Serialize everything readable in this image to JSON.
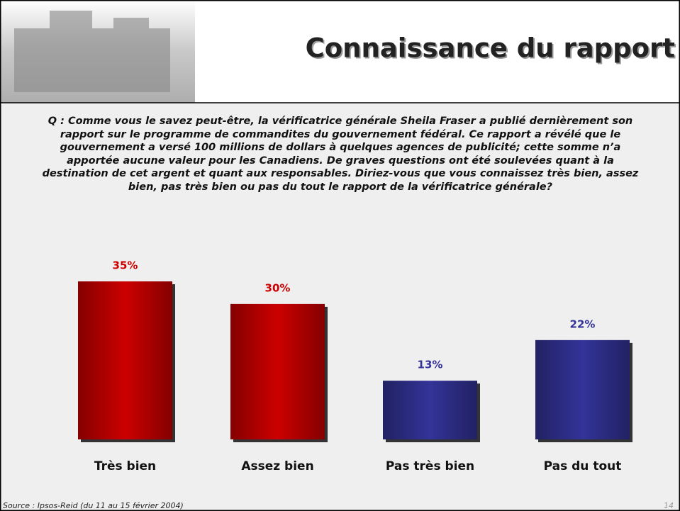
{
  "chart_data": {
    "type": "bar",
    "title": "Connaissance du rapport",
    "question": "Q : Comme vous le savez peut-être, la vérificatrice générale Sheila Fraser a publié dernièrement son rapport sur le programme de commandites du gouvernement fédéral. Ce rapport a révélé que le gouvernement a versé 100 millions de dollars à quelques agences de publicité; cette somme n’a apportée aucune valeur pour les Canadiens. De graves questions ont été soulevées quant à la destination de cet argent et quant aux responsables. Diriez-vous que vous connaissez très bien, assez bien, pas très bien ou pas du tout le rapport de la vérificatrice générale?",
    "categories": [
      "Très bien",
      "Assez bien",
      "Pas très bien",
      "Pas du tout"
    ],
    "values": [
      35,
      30,
      13,
      22
    ],
    "value_labels": [
      "35%",
      "30%",
      "13%",
      "22%"
    ],
    "colors": [
      "#cc0000",
      "#cc0000",
      "#333399",
      "#333399"
    ],
    "source": "Source : Ipsos-Reid (du 11 au 15 février 2004)",
    "page_number": "14"
  }
}
